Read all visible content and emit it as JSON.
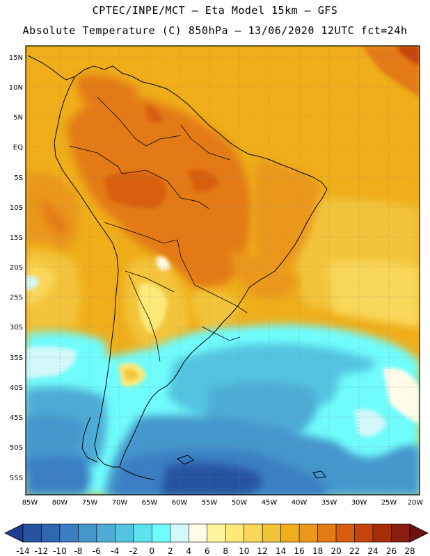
{
  "header": {
    "line1": "CPTEC/INPE/MCT –  Eta Model 15km – GFS",
    "line2": "Absolute Temperature (C) 850hPa – 13/06/2020 12UTC fct=24h"
  },
  "map": {
    "lat_labels": [
      "15N",
      "10N",
      "5N",
      "EQ",
      "5S",
      "10S",
      "15S",
      "20S",
      "25S",
      "30S",
      "35S",
      "40S",
      "45S",
      "50S",
      "55S"
    ],
    "lon_labels": [
      "85W",
      "80W",
      "75W",
      "70W",
      "65W",
      "60W",
      "55W",
      "50W",
      "45W",
      "40W",
      "35W",
      "30W",
      "25W",
      "20W"
    ]
  },
  "colorbar": {
    "labels": [
      "-14",
      "-12",
      "-10",
      "-8",
      "-6",
      "-4",
      "-2",
      "0",
      "2",
      "4",
      "6",
      "8",
      "10",
      "12",
      "14",
      "16",
      "18",
      "20",
      "22",
      "24",
      "26",
      "28"
    ],
    "colors": [
      "#1f3d8c",
      "#2853a0",
      "#2f67b1",
      "#3b7fc2",
      "#4596cc",
      "#4eabd6",
      "#52c4e0",
      "#5ee2ee",
      "#6ffcfc",
      "#d2f8fa",
      "#fffbe8",
      "#fff4a0",
      "#fde97a",
      "#f9d75a",
      "#f3c43a",
      "#efae1a",
      "#ea971a",
      "#e47a14",
      "#d85e0e",
      "#c4440a",
      "#a82e08",
      "#8a1e10",
      "#6e1010"
    ]
  },
  "colors": {
    "ocean_warm": "#efae1a",
    "land_hot": "#e47a14",
    "cold_water": "#6ffcfc",
    "deep_cold": "#2f67b1"
  }
}
